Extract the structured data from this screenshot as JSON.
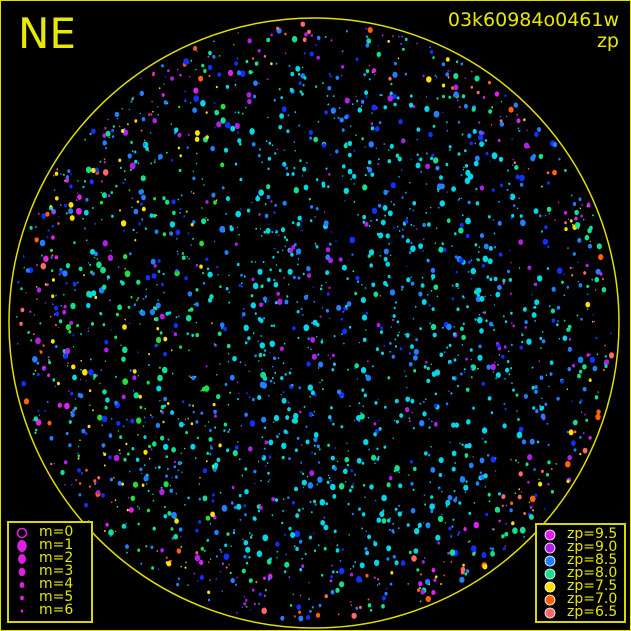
{
  "direction_label": "NE",
  "image_id": "03k60984o0461w",
  "mode_label": "zp",
  "magnitude_legend": [
    {
      "label": "m=0",
      "style": "ring"
    },
    {
      "label": "m=1",
      "size": "largest"
    },
    {
      "label": "m=2",
      "size": "large"
    },
    {
      "label": "m=3",
      "size": "medium"
    },
    {
      "label": "m=4",
      "size": "small"
    },
    {
      "label": "m=5",
      "size": "smaller"
    },
    {
      "label": "m=6",
      "size": "smallest"
    }
  ],
  "zp_legend": [
    {
      "label": "zp=9.5",
      "color": "#e020f0"
    },
    {
      "label": "zp=9.0",
      "color": "#b020e8"
    },
    {
      "label": "zp=8.5",
      "color": "#2080ff"
    },
    {
      "label": "zp=8.0",
      "color": "#10e090"
    },
    {
      "label": "zp=7.5",
      "color": "#ffe000"
    },
    {
      "label": "zp=7.0",
      "color": "#ff6010"
    },
    {
      "label": "zp=6.5",
      "color": "#ff6868"
    }
  ],
  "colors": {
    "frame": "#e0e000",
    "background": "#000000",
    "star_cyan": "#00d8e8"
  }
}
